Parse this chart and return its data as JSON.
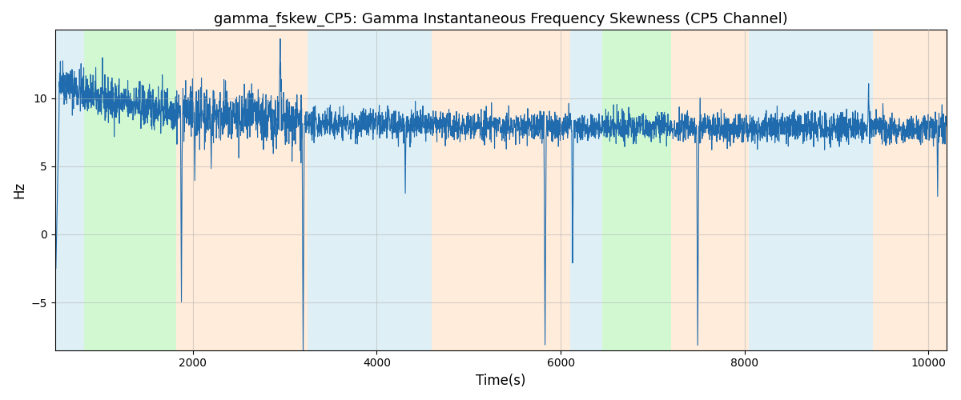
{
  "title": "gamma_fskew_CP5: Gamma Instantaneous Frequency Skewness (CP5 Channel)",
  "xlabel": "Time(s)",
  "ylabel": "Hz",
  "xlim": [
    500,
    10200
  ],
  "ylim": [
    -8.5,
    15
  ],
  "yticks": [
    -5,
    0,
    5,
    10
  ],
  "xticks": [
    2000,
    4000,
    6000,
    8000,
    10000
  ],
  "line_color": "#1f6bad",
  "line_width": 0.8,
  "bg_bands": [
    {
      "xstart": 500,
      "xend": 820,
      "color": "#add8e6",
      "alpha": 0.4
    },
    {
      "xstart": 820,
      "xend": 1820,
      "color": "#90ee90",
      "alpha": 0.4
    },
    {
      "xstart": 1820,
      "xend": 3250,
      "color": "#ffdab9",
      "alpha": 0.5
    },
    {
      "xstart": 3250,
      "xend": 4600,
      "color": "#add8e6",
      "alpha": 0.4
    },
    {
      "xstart": 4600,
      "xend": 6100,
      "color": "#ffdab9",
      "alpha": 0.5
    },
    {
      "xstart": 6100,
      "xend": 6450,
      "color": "#add8e6",
      "alpha": 0.4
    },
    {
      "xstart": 6450,
      "xend": 7200,
      "color": "#90ee90",
      "alpha": 0.4
    },
    {
      "xstart": 7200,
      "xend": 8050,
      "color": "#ffdab9",
      "alpha": 0.5
    },
    {
      "xstart": 8050,
      "xend": 9400,
      "color": "#add8e6",
      "alpha": 0.4
    },
    {
      "xstart": 9400,
      "xend": 10200,
      "color": "#ffdab9",
      "alpha": 0.5
    }
  ],
  "grid_color": "#b0b0b0",
  "grid_alpha": 0.5,
  "grid_linewidth": 0.8,
  "figsize": [
    12,
    5
  ],
  "dpi": 100,
  "signal_seed": 42,
  "signal_xstart": 510,
  "signal_xend": 10190,
  "signal_n": 4000
}
